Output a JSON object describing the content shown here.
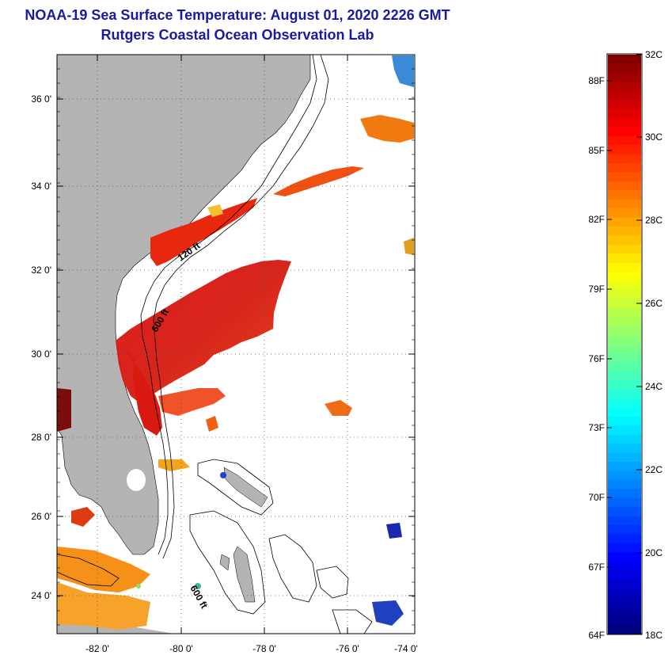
{
  "title": {
    "line1": "NOAA-19 Sea Surface Temperature:  August 01, 2020 2226 GMT",
    "line2": "Rutgers Coastal Ocean Observation Lab"
  },
  "map": {
    "lat_labels": [
      "36 0'",
      "34 0'",
      "32 0'",
      "30 0'",
      "28 0'",
      "26 0'",
      "24 0'"
    ],
    "lon_labels": [
      "-82 0'",
      "-80 0'",
      "-78 0'",
      "-76 0'",
      "-74 0'"
    ],
    "contour_labels": [
      "120 ft",
      "600 ft",
      "600 ft"
    ],
    "colors": {
      "land": "#b4b4b4",
      "no_data": "#ffffff",
      "grid": "#555555"
    }
  },
  "colorbar": {
    "celsius_labels": [
      "32C",
      "30C",
      "28C",
      "26C",
      "24C",
      "22C",
      "20C",
      "18C"
    ],
    "fahrenheit_labels": [
      "88F",
      "85F",
      "82F",
      "79F",
      "76F",
      "73F",
      "70F",
      "67F",
      "64F"
    ],
    "range_c": [
      18,
      32
    ]
  }
}
